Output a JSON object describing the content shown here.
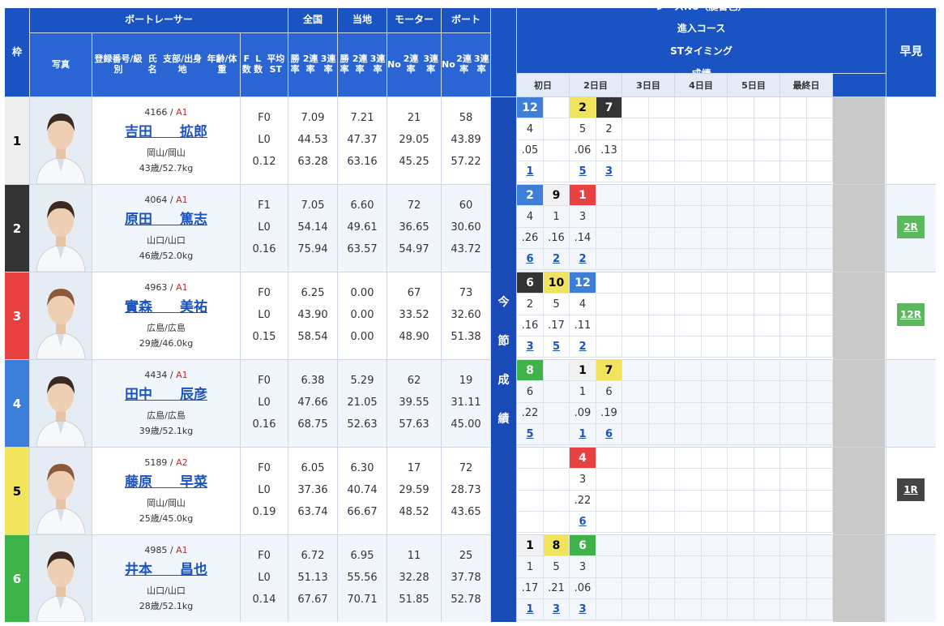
{
  "headers": {
    "waku": "枠",
    "boatracer": "ボートレーサー",
    "photo": "写真",
    "info_lines": [
      "登録番号/級別",
      "氏名",
      "支部/出身地",
      "年齢/体重"
    ],
    "fl_lines": [
      "F数",
      "L数",
      "平均ST"
    ],
    "zenkoku": "全国",
    "touchi": "当地",
    "motor": "モーター",
    "boat": "ボート",
    "rate_lines": [
      "勝率",
      "2連率",
      "3連率"
    ],
    "no_lines": [
      "No",
      "2連率",
      "3連率"
    ],
    "race_lines": [
      "レースNo（艇番色）",
      "進入コース",
      "STタイミング",
      "成績"
    ],
    "days": [
      "初日",
      "2日目",
      "3日目",
      "4日目",
      "5日目",
      "最終日"
    ],
    "konsetsu_chars": [
      "今",
      "節",
      "成",
      "績"
    ],
    "hayami": "早見"
  },
  "colors": {
    "lane": [
      "#ffffff",
      "#333333",
      "#e84141",
      "#3d7fd8",
      "#f2e35c",
      "#3db34a"
    ],
    "lane_text": [
      "#000000",
      "#ffffff",
      "#ffffff",
      "#ffffff",
      "#000000",
      "#ffffff"
    ],
    "header_blue": "#1a53c2"
  },
  "racers": [
    {
      "waku": "1",
      "reg": "4166",
      "grade": "A1",
      "surname": "吉田",
      "given": "拡郎",
      "branch": "岡山/岡山",
      "age_weight": "43歳/52.7kg",
      "f": "F0",
      "l": "L0",
      "st": "0.12",
      "zenkoku": [
        "7.09",
        "44.53",
        "63.28"
      ],
      "touchi": [
        "7.21",
        "47.37",
        "63.16"
      ],
      "motor": [
        "21",
        "29.05",
        "45.25"
      ],
      "boat": [
        "58",
        "43.89",
        "57.22"
      ],
      "results": [
        {
          "col": 0,
          "race": "12",
          "color": 3,
          "course": "4",
          "st": ".05",
          "rank": "1"
        },
        {
          "col": 2,
          "race": "2",
          "color": 4,
          "course": "5",
          "st": ".06",
          "rank": "5"
        },
        {
          "col": 3,
          "race": "7",
          "color": 1,
          "course": "2",
          "st": ".13",
          "rank": "3"
        }
      ],
      "hayami": ""
    },
    {
      "waku": "2",
      "reg": "4064",
      "grade": "A1",
      "surname": "原田",
      "given": "篤志",
      "branch": "山口/山口",
      "age_weight": "46歳/52.0kg",
      "f": "F1",
      "l": "L0",
      "st": "0.16",
      "zenkoku": [
        "7.05",
        "54.14",
        "75.94"
      ],
      "touchi": [
        "6.60",
        "49.61",
        "63.57"
      ],
      "motor": [
        "72",
        "36.65",
        "54.97"
      ],
      "boat": [
        "60",
        "30.60",
        "43.72"
      ],
      "results": [
        {
          "col": 0,
          "race": "2",
          "color": 3,
          "course": "4",
          "st": ".26",
          "rank": "6"
        },
        {
          "col": 1,
          "race": "9",
          "color": 0,
          "course": "1",
          "st": ".16",
          "rank": "2"
        },
        {
          "col": 2,
          "race": "1",
          "color": 2,
          "course": "3",
          "st": ".14",
          "rank": "2"
        }
      ],
      "hayami": "2R",
      "hayami_color": "#5cb85c"
    },
    {
      "waku": "3",
      "reg": "4963",
      "grade": "A1",
      "surname": "實森",
      "given": "美祐",
      "branch": "広島/広島",
      "age_weight": "29歳/46.0kg",
      "f": "F0",
      "l": "L0",
      "st": "0.15",
      "zenkoku": [
        "6.25",
        "43.90",
        "58.54"
      ],
      "touchi": [
        "0.00",
        "0.00",
        "0.00"
      ],
      "motor": [
        "67",
        "33.52",
        "48.90"
      ],
      "boat": [
        "73",
        "32.60",
        "51.38"
      ],
      "results": [
        {
          "col": 0,
          "race": "6",
          "color": 1,
          "course": "2",
          "st": ".16",
          "rank": "3"
        },
        {
          "col": 1,
          "race": "10",
          "color": 4,
          "course": "5",
          "st": ".17",
          "rank": "5"
        },
        {
          "col": 2,
          "race": "12",
          "color": 3,
          "course": "4",
          "st": ".11",
          "rank": "2"
        }
      ],
      "hayami": "12R",
      "hayami_color": "#5cb85c"
    },
    {
      "waku": "4",
      "reg": "4434",
      "grade": "A1",
      "surname": "田中",
      "given": "辰彦",
      "branch": "広島/広島",
      "age_weight": "39歳/52.1kg",
      "f": "F0",
      "l": "L0",
      "st": "0.16",
      "zenkoku": [
        "6.38",
        "47.66",
        "68.75"
      ],
      "touchi": [
        "5.29",
        "21.05",
        "52.63"
      ],
      "motor": [
        "62",
        "39.55",
        "57.63"
      ],
      "boat": [
        "19",
        "31.11",
        "45.00"
      ],
      "results": [
        {
          "col": 0,
          "race": "8",
          "color": 5,
          "course": "6",
          "st": ".22",
          "rank": "5"
        },
        {
          "col": 2,
          "race": "1",
          "color": 0,
          "course": "1",
          "st": ".09",
          "rank": "1"
        },
        {
          "col": 3,
          "race": "7",
          "color": 4,
          "course": "6",
          "st": ".19",
          "rank": "6"
        }
      ],
      "hayami": ""
    },
    {
      "waku": "5",
      "reg": "5189",
      "grade": "A2",
      "surname": "藤原",
      "given": "早菜",
      "branch": "岡山/岡山",
      "age_weight": "25歳/45.0kg",
      "f": "F0",
      "l": "L0",
      "st": "0.19",
      "zenkoku": [
        "6.05",
        "37.36",
        "63.74"
      ],
      "touchi": [
        "6.30",
        "40.74",
        "66.67"
      ],
      "motor": [
        "17",
        "29.59",
        "48.52"
      ],
      "boat": [
        "72",
        "28.73",
        "43.65"
      ],
      "results": [
        {
          "col": 2,
          "race": "4",
          "color": 2,
          "course": "3",
          "st": ".22",
          "rank": "6"
        }
      ],
      "hayami": "1R",
      "hayami_color": "#444444"
    },
    {
      "waku": "6",
      "reg": "4985",
      "grade": "A1",
      "surname": "井本",
      "given": "昌也",
      "branch": "山口/山口",
      "age_weight": "28歳/52.1kg",
      "f": "F0",
      "l": "L0",
      "st": "0.14",
      "zenkoku": [
        "6.72",
        "51.13",
        "67.67"
      ],
      "touchi": [
        "6.95",
        "55.56",
        "70.71"
      ],
      "motor": [
        "11",
        "32.28",
        "51.85"
      ],
      "boat": [
        "25",
        "37.78",
        "52.78"
      ],
      "results": [
        {
          "col": 0,
          "race": "1",
          "color": 0,
          "course": "1",
          "st": ".17",
          "rank": "1"
        },
        {
          "col": 1,
          "race": "8",
          "color": 4,
          "course": "5",
          "st": ".21",
          "rank": "3"
        },
        {
          "col": 2,
          "race": "6",
          "color": 5,
          "course": "3",
          "st": ".06",
          "rank": "3"
        }
      ],
      "hayami": ""
    }
  ]
}
